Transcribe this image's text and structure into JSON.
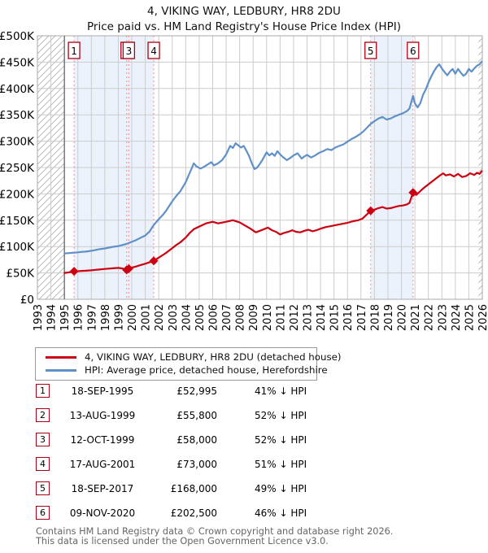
{
  "title": {
    "line1": "4, VIKING WAY, LEDBURY, HR8 2DU",
    "line2": "Price paid vs. HM Land Registry's House Price Index (HPI)"
  },
  "colors": {
    "price_line": "#cc0011",
    "hpi_line": "#6090c8",
    "marker_box_border": "#aa0011",
    "dashed_sale_line": "#ff8c8c",
    "ownership_band_fill": "#ecf2fb",
    "grid": "#cccccc",
    "plot_border": "#aaaaaa",
    "hatch_line": "#bbbbbb",
    "hpi_start_line": "#444444",
    "footer_text": "#666666"
  },
  "chart_data": {
    "type": "line",
    "x_axis": {
      "min": 1993,
      "max": 2026,
      "ticks": [
        "1993",
        "1994",
        "1995",
        "1996",
        "1997",
        "1998",
        "1999",
        "2000",
        "2001",
        "2002",
        "2003",
        "2004",
        "2005",
        "2006",
        "2007",
        "2008",
        "2009",
        "2010",
        "2011",
        "2012",
        "2013",
        "2014",
        "2015",
        "2016",
        "2017",
        "2018",
        "2019",
        "2020",
        "2021",
        "2022",
        "2023",
        "2024",
        "2025",
        "2026"
      ]
    },
    "y_axis": {
      "min": 0,
      "max": 500000,
      "unit_per_point": 1000,
      "ticks": [
        "£0",
        "£50K",
        "£100K",
        "£150K",
        "£200K",
        "£250K",
        "£300K",
        "£350K",
        "£400K",
        "£450K",
        "£500K"
      ]
    },
    "grid": true,
    "legend_position": "bottom",
    "hatched_no_data_regions": [
      [
        1993,
        1995
      ],
      [
        2025.72,
        2026
      ]
    ],
    "ownership_bands": [
      [
        1995.72,
        2001.63
      ],
      [
        2017.72,
        2020.86
      ]
    ],
    "sale_markers": [
      {
        "label": "1",
        "x": 1995.72,
        "value_k": 52.995
      },
      {
        "label": "2",
        "x": 1999.62,
        "value_k": 55.8
      },
      {
        "label": "3",
        "x": 1999.78,
        "value_k": 58.0
      },
      {
        "label": "4",
        "x": 2001.63,
        "value_k": 73.0
      },
      {
        "label": "5",
        "x": 2017.72,
        "value_k": 168.0
      },
      {
        "label": "6",
        "x": 2020.86,
        "value_k": 202.5
      }
    ],
    "series": [
      {
        "name": "4, VIKING WAY, LEDBURY, HR8 2DU (detached house)",
        "color": "#cc0011",
        "points": [
          [
            1995.0,
            50
          ],
          [
            1995.3,
            51
          ],
          [
            1995.5,
            51.8
          ],
          [
            1995.72,
            53
          ],
          [
            1996.0,
            53.3
          ],
          [
            1996.3,
            53.8
          ],
          [
            1996.6,
            54.2
          ],
          [
            1997.0,
            55
          ],
          [
            1997.3,
            55.8
          ],
          [
            1997.6,
            56.5
          ],
          [
            1998.0,
            57.5
          ],
          [
            1998.3,
            58.2
          ],
          [
            1998.6,
            58.8
          ],
          [
            1999.0,
            59.5
          ],
          [
            1999.3,
            58.5
          ],
          [
            1999.62,
            55.8
          ],
          [
            1999.78,
            58
          ],
          [
            2000.0,
            60
          ],
          [
            2000.3,
            62
          ],
          [
            2000.6,
            64.5
          ],
          [
            2001.0,
            67.5
          ],
          [
            2001.3,
            70
          ],
          [
            2001.63,
            73
          ],
          [
            2002.0,
            79
          ],
          [
            2002.3,
            84
          ],
          [
            2002.6,
            89
          ],
          [
            2003.0,
            97
          ],
          [
            2003.3,
            103
          ],
          [
            2003.6,
            108
          ],
          [
            2004.0,
            117
          ],
          [
            2004.3,
            126
          ],
          [
            2004.6,
            133
          ],
          [
            2005.0,
            138
          ],
          [
            2005.5,
            144
          ],
          [
            2006.0,
            147
          ],
          [
            2006.4,
            144
          ],
          [
            2007.0,
            147
          ],
          [
            2007.5,
            150
          ],
          [
            2008.0,
            146
          ],
          [
            2008.4,
            140
          ],
          [
            2008.8,
            134
          ],
          [
            2009.2,
            127
          ],
          [
            2009.5,
            130
          ],
          [
            2009.8,
            133
          ],
          [
            2010.1,
            136
          ],
          [
            2010.4,
            131
          ],
          [
            2010.7,
            128
          ],
          [
            2011.0,
            123
          ],
          [
            2011.3,
            126
          ],
          [
            2011.6,
            128
          ],
          [
            2011.9,
            131
          ],
          [
            2012.2,
            128
          ],
          [
            2012.5,
            127
          ],
          [
            2012.8,
            130
          ],
          [
            2013.1,
            132
          ],
          [
            2013.4,
            129
          ],
          [
            2013.7,
            131
          ],
          [
            2014.0,
            134
          ],
          [
            2014.4,
            137
          ],
          [
            2014.8,
            139
          ],
          [
            2015.2,
            141
          ],
          [
            2015.6,
            143
          ],
          [
            2016.0,
            145
          ],
          [
            2016.4,
            148
          ],
          [
            2016.8,
            150
          ],
          [
            2017.1,
            153
          ],
          [
            2017.4,
            160
          ],
          [
            2017.72,
            168
          ],
          [
            2018.0,
            170
          ],
          [
            2018.3,
            173
          ],
          [
            2018.6,
            175
          ],
          [
            2018.9,
            172
          ],
          [
            2019.2,
            173
          ],
          [
            2019.5,
            175
          ],
          [
            2019.8,
            177
          ],
          [
            2020.1,
            178
          ],
          [
            2020.4,
            180
          ],
          [
            2020.6,
            183
          ],
          [
            2020.86,
            202.5
          ],
          [
            2021.1,
            198
          ],
          [
            2021.3,
            203
          ],
          [
            2021.6,
            210
          ],
          [
            2021.9,
            216
          ],
          [
            2022.2,
            222
          ],
          [
            2022.5,
            228
          ],
          [
            2022.8,
            234
          ],
          [
            2023.1,
            239
          ],
          [
            2023.3,
            235
          ],
          [
            2023.6,
            237
          ],
          [
            2023.9,
            233
          ],
          [
            2024.2,
            238
          ],
          [
            2024.5,
            232
          ],
          [
            2024.8,
            234
          ],
          [
            2025.1,
            239
          ],
          [
            2025.4,
            236
          ],
          [
            2025.6,
            240
          ],
          [
            2025.8,
            238
          ],
          [
            2025.95,
            243
          ]
        ]
      },
      {
        "name": "HPI: Average price, detached house, Herefordshire",
        "color": "#6090c8",
        "points": [
          [
            1995.0,
            87
          ],
          [
            1995.25,
            87.5
          ],
          [
            1995.5,
            88
          ],
          [
            1995.75,
            88.5
          ],
          [
            1996.0,
            89
          ],
          [
            1996.3,
            90
          ],
          [
            1996.6,
            90.5
          ],
          [
            1997.0,
            92
          ],
          [
            1997.3,
            93.5
          ],
          [
            1997.6,
            95
          ],
          [
            1998.0,
            96.5
          ],
          [
            1998.3,
            98
          ],
          [
            1998.6,
            99.5
          ],
          [
            1999.0,
            101
          ],
          [
            1999.3,
            103
          ],
          [
            1999.6,
            105
          ],
          [
            2000.0,
            109
          ],
          [
            2000.3,
            112
          ],
          [
            2000.6,
            116
          ],
          [
            2001.0,
            121
          ],
          [
            2001.3,
            128
          ],
          [
            2001.6,
            140
          ],
          [
            2002.0,
            152
          ],
          [
            2002.3,
            160
          ],
          [
            2002.6,
            170
          ],
          [
            2003.0,
            186
          ],
          [
            2003.3,
            196
          ],
          [
            2003.6,
            205
          ],
          [
            2004.0,
            222
          ],
          [
            2004.3,
            240
          ],
          [
            2004.6,
            258
          ],
          [
            2004.8,
            252
          ],
          [
            2005.1,
            248
          ],
          [
            2005.4,
            252
          ],
          [
            2005.7,
            257
          ],
          [
            2005.9,
            260
          ],
          [
            2006.1,
            254
          ],
          [
            2006.4,
            258
          ],
          [
            2006.7,
            264
          ],
          [
            2007.0,
            275
          ],
          [
            2007.3,
            291
          ],
          [
            2007.5,
            287
          ],
          [
            2007.7,
            296
          ],
          [
            2007.9,
            292
          ],
          [
            2008.1,
            288
          ],
          [
            2008.3,
            291
          ],
          [
            2008.5,
            282
          ],
          [
            2008.7,
            272
          ],
          [
            2008.9,
            258
          ],
          [
            2009.1,
            247
          ],
          [
            2009.3,
            250
          ],
          [
            2009.5,
            257
          ],
          [
            2009.7,
            265
          ],
          [
            2010.0,
            279
          ],
          [
            2010.2,
            273
          ],
          [
            2010.4,
            277
          ],
          [
            2010.6,
            272
          ],
          [
            2010.8,
            281
          ],
          [
            2011.0,
            275
          ],
          [
            2011.2,
            270
          ],
          [
            2011.5,
            264
          ],
          [
            2011.8,
            269
          ],
          [
            2012.0,
            273
          ],
          [
            2012.3,
            277
          ],
          [
            2012.6,
            267
          ],
          [
            2012.8,
            271
          ],
          [
            2013.0,
            274
          ],
          [
            2013.3,
            269
          ],
          [
            2013.6,
            273
          ],
          [
            2013.9,
            278
          ],
          [
            2014.2,
            281
          ],
          [
            2014.5,
            285
          ],
          [
            2014.8,
            283
          ],
          [
            2015.1,
            288
          ],
          [
            2015.4,
            291
          ],
          [
            2015.7,
            294
          ],
          [
            2016.0,
            299
          ],
          [
            2016.3,
            304
          ],
          [
            2016.6,
            308
          ],
          [
            2016.9,
            313
          ],
          [
            2017.2,
            319
          ],
          [
            2017.5,
            327
          ],
          [
            2017.72,
            333
          ],
          [
            2018.0,
            338
          ],
          [
            2018.3,
            343
          ],
          [
            2018.6,
            346
          ],
          [
            2018.9,
            341
          ],
          [
            2019.2,
            343
          ],
          [
            2019.5,
            347
          ],
          [
            2019.8,
            350
          ],
          [
            2020.1,
            353
          ],
          [
            2020.4,
            357
          ],
          [
            2020.6,
            362
          ],
          [
            2020.86,
            386
          ],
          [
            2021.0,
            372
          ],
          [
            2021.2,
            364
          ],
          [
            2021.4,
            372
          ],
          [
            2021.6,
            388
          ],
          [
            2021.8,
            398
          ],
          [
            2022.0,
            411
          ],
          [
            2022.2,
            422
          ],
          [
            2022.4,
            432
          ],
          [
            2022.6,
            440
          ],
          [
            2022.8,
            446
          ],
          [
            2023.0,
            438
          ],
          [
            2023.2,
            431
          ],
          [
            2023.4,
            425
          ],
          [
            2023.6,
            432
          ],
          [
            2023.8,
            437
          ],
          [
            2024.0,
            428
          ],
          [
            2024.2,
            437
          ],
          [
            2024.4,
            430
          ],
          [
            2024.6,
            424
          ],
          [
            2024.8,
            428
          ],
          [
            2025.0,
            437
          ],
          [
            2025.2,
            432
          ],
          [
            2025.4,
            438
          ],
          [
            2025.6,
            443
          ],
          [
            2025.8,
            446
          ],
          [
            2025.95,
            451
          ]
        ]
      }
    ]
  },
  "legend": {
    "entries": [
      {
        "label": "4, VIKING WAY, LEDBURY, HR8 2DU (detached house)",
        "color": "#cc0011"
      },
      {
        "label": "HPI: Average price, detached house, Herefordshire",
        "color": "#6090c8"
      }
    ]
  },
  "sales": [
    {
      "n": "1",
      "date": "18-SEP-1995",
      "price": "£52,995",
      "vs_hpi": "41% ↓ HPI"
    },
    {
      "n": "2",
      "date": "13-AUG-1999",
      "price": "£55,800",
      "vs_hpi": "52% ↓ HPI"
    },
    {
      "n": "3",
      "date": "12-OCT-1999",
      "price": "£58,000",
      "vs_hpi": "52% ↓ HPI"
    },
    {
      "n": "4",
      "date": "17-AUG-2001",
      "price": "£73,000",
      "vs_hpi": "51% ↓ HPI"
    },
    {
      "n": "5",
      "date": "18-SEP-2017",
      "price": "£168,000",
      "vs_hpi": "49% ↓ HPI"
    },
    {
      "n": "6",
      "date": "09-NOV-2020",
      "price": "£202,500",
      "vs_hpi": "46% ↓ HPI"
    }
  ],
  "footer": {
    "line1": "Contains HM Land Registry data © Crown copyright and database right 2026.",
    "line2": "This data is licensed under the Open Government Licence v3.0."
  }
}
